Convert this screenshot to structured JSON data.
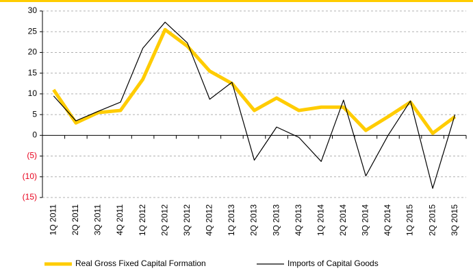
{
  "chart_data": {
    "type": "line",
    "categories": [
      "1Q 2011",
      "2Q 2011",
      "3Q 2011",
      "4Q 2011",
      "1Q 2012",
      "2Q 2012",
      "3Q 2012",
      "4Q 2012",
      "1Q 2013",
      "2Q 2013",
      "3Q 2013",
      "4Q 2013",
      "1Q 2014",
      "2Q 2014",
      "3Q 2014",
      "4Q 2014",
      "1Q 2015",
      "2Q 2015",
      "3Q 2015"
    ],
    "series": [
      {
        "name": "Real Gross Fixed Capital Formation",
        "color": "#ffcc00",
        "values": [
          11,
          3,
          5.5,
          6,
          13.5,
          25.5,
          21.5,
          15.5,
          12.5,
          6,
          9,
          6,
          6.8,
          6.8,
          1.2,
          4.5,
          8,
          0.5,
          4.5
        ]
      },
      {
        "name": "Imports of Capital Goods",
        "color": "#000000",
        "values": [
          9.5,
          3.5,
          5.8,
          8,
          21,
          27.3,
          22.3,
          8.7,
          12.8,
          -6,
          2,
          -0.5,
          -6.3,
          8.5,
          -9.8,
          0,
          8.3,
          -12.8,
          5
        ]
      }
    ],
    "ylim": [
      -15,
      30
    ],
    "yticks": [
      {
        "value": -15,
        "label": "(15)"
      },
      {
        "value": -10,
        "label": "(10)"
      },
      {
        "value": -5,
        "label": "(5)"
      },
      0,
      5,
      10,
      15,
      20,
      25,
      30
    ],
    "negative_tick_color": "#e8001c",
    "grid": true
  }
}
